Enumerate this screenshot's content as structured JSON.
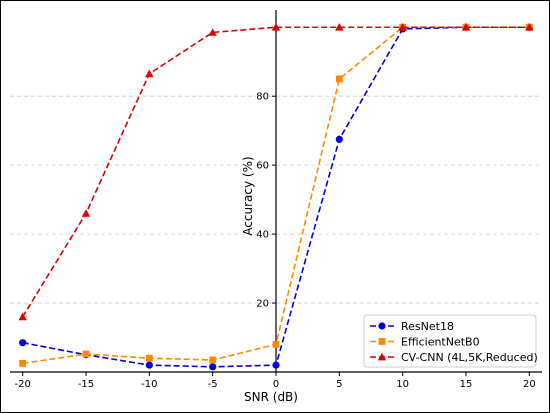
{
  "chart_data": {
    "type": "line",
    "title": "",
    "xlabel": "SNR (dB)",
    "ylabel": "Accuracy (%)",
    "x": [
      -20,
      -15,
      -10,
      -5,
      0,
      5,
      10,
      15,
      20
    ],
    "xticks": [
      "-20",
      "-15",
      "-10",
      "-5",
      "0",
      "5",
      "10",
      "15",
      "20"
    ],
    "yticks": [
      "20",
      "40",
      "60",
      "80"
    ],
    "xlim": [
      -21,
      21
    ],
    "ylim": [
      0,
      105
    ],
    "grid": "horizontal-dashed",
    "legend_position": "bottom-right",
    "series": [
      {
        "name": "ResNet18",
        "color": "#0000dd",
        "marker": "circle",
        "values": [
          8.5,
          5,
          2,
          1.5,
          2,
          67.5,
          99.5,
          100,
          100
        ]
      },
      {
        "name": "EfficientNetB0",
        "color": "#ff8800",
        "marker": "square",
        "values": [
          2.5,
          5.2,
          4,
          3.5,
          8,
          85,
          100,
          100,
          100
        ]
      },
      {
        "name": "CV-CNN (4L,5K,Reduced)",
        "color": "#dd0000",
        "marker": "triangle",
        "values": [
          16,
          46,
          86.5,
          98.5,
          100,
          100,
          100,
          100,
          100
        ]
      }
    ]
  }
}
